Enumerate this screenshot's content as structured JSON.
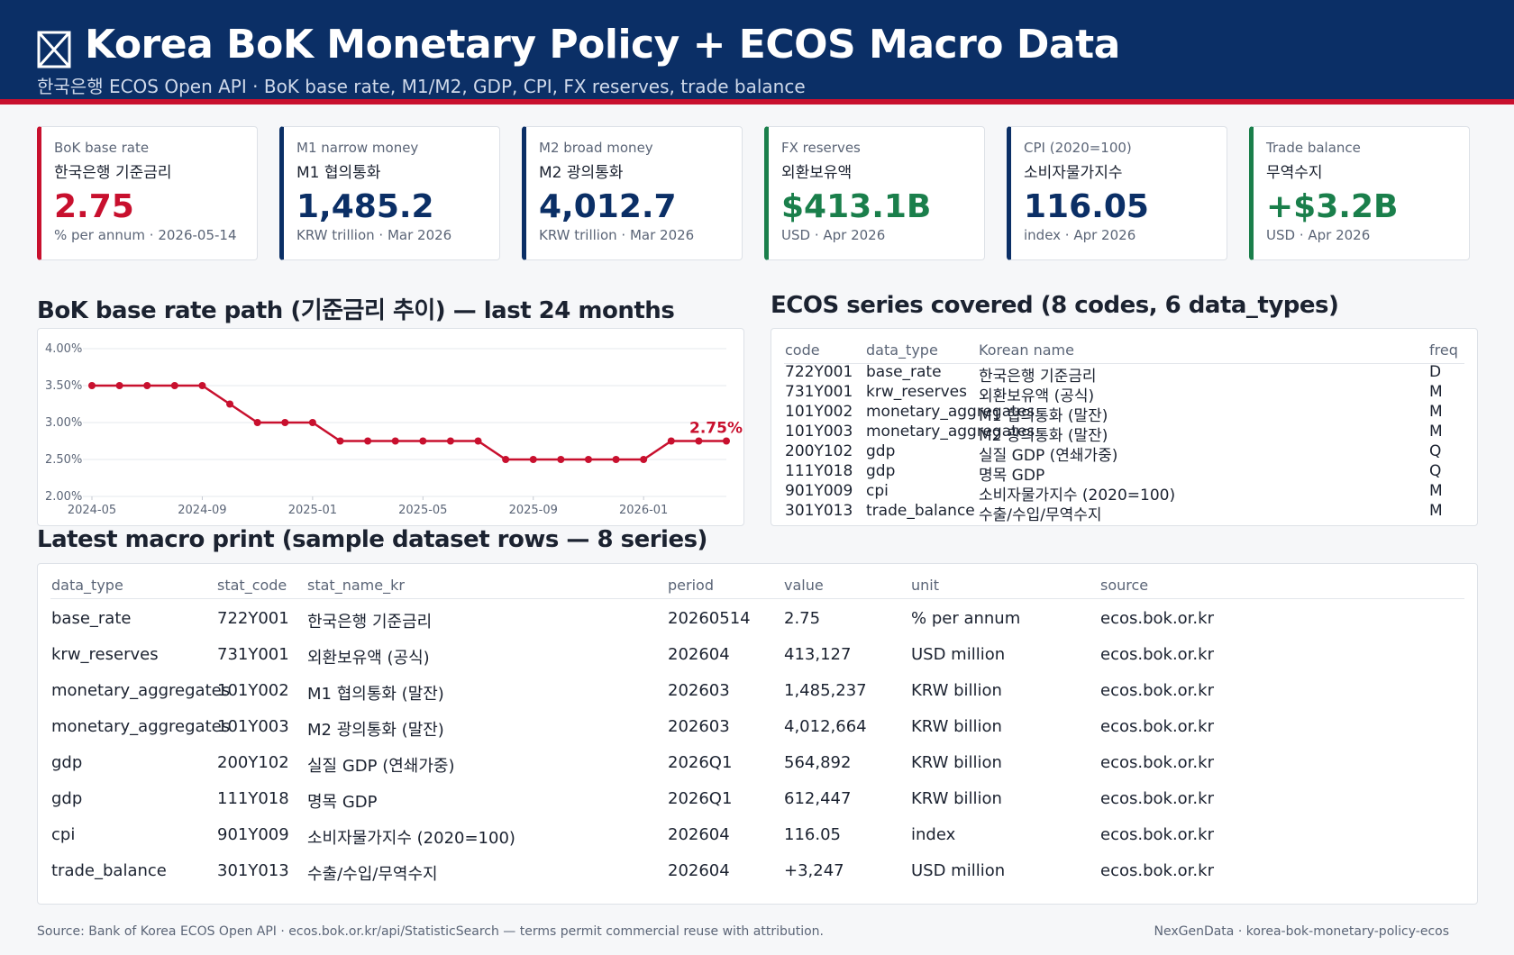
{
  "header": {
    "title": "Korea BoK Monetary Policy + ECOS Macro Data",
    "subtitle": "한국은행 ECOS Open API · BoK base rate, M1/M2, GDP, CPI, FX reserves, trade balance"
  },
  "kpis": [
    {
      "label": "BoK base rate",
      "label_kr": "한국은행 기준금리",
      "value": "2.75",
      "caption": "% per annum · 2026-05-14",
      "color": "#c8102e"
    },
    {
      "label": "M1 narrow money",
      "label_kr": "M1 협의통화",
      "value": "1,485.2",
      "caption": "KRW trillion · Mar 2026",
      "color": "#0b2f66"
    },
    {
      "label": "M2 broad money",
      "label_kr": "M2 광의통화",
      "value": "4,012.7",
      "caption": "KRW trillion · Mar 2026",
      "color": "#0b2f66"
    },
    {
      "label": "FX reserves",
      "label_kr": "외환보유액",
      "value": "$413.1B",
      "caption": "USD · Apr 2026",
      "color": "#1a7f4b"
    },
    {
      "label": "CPI (2020=100)",
      "label_kr": "소비자물가지수",
      "value": "116.05",
      "caption": "index · Apr 2026",
      "color": "#0b2f66"
    },
    {
      "label": "Trade balance",
      "label_kr": "무역수지",
      "value": "+$3.2B",
      "caption": "USD · Apr 2026",
      "color": "#1a7f4b"
    }
  ],
  "chart_data": {
    "type": "line",
    "title": "BoK base rate path (기준금리 추이) — last 24 months",
    "x": [
      "2024-05",
      "2024-06",
      "2024-07",
      "2024-08",
      "2024-09",
      "2024-10",
      "2024-11",
      "2024-12",
      "2025-01",
      "2025-02",
      "2025-03",
      "2025-04",
      "2025-05",
      "2025-06",
      "2025-07",
      "2025-08",
      "2025-09",
      "2025-10",
      "2025-11",
      "2025-12",
      "2026-01",
      "2026-02",
      "2026-03",
      "2026-04"
    ],
    "values": [
      3.5,
      3.5,
      3.5,
      3.5,
      3.5,
      3.25,
      3.0,
      3.0,
      3.0,
      2.75,
      2.75,
      2.75,
      2.75,
      2.75,
      2.75,
      2.5,
      2.5,
      2.5,
      2.5,
      2.5,
      2.5,
      2.75,
      2.75,
      2.75
    ],
    "color": "#c8102e",
    "end_label": "2.75%",
    "xticks": [
      "2024-05",
      "2024-09",
      "2025-01",
      "2025-05",
      "2025-09",
      "2026-01"
    ],
    "ylim": [
      2,
      4
    ],
    "yticks": [
      {
        "value": 2,
        "label": "2.00%"
      },
      {
        "value": 2.5,
        "label": "2.50%"
      },
      {
        "value": 3,
        "label": "3.00%"
      },
      {
        "value": 3.5,
        "label": "3.50%"
      },
      {
        "value": 4,
        "label": "4.00%"
      }
    ],
    "grid": true
  },
  "series_table": {
    "title": "ECOS series covered (8 codes, 6 data_types)",
    "columns": [
      "code",
      "data_type",
      "Korean name",
      "freq"
    ],
    "rows": [
      [
        "722Y001",
        "base_rate",
        "한국은행 기준금리",
        "D"
      ],
      [
        "731Y001",
        "krw_reserves",
        "외환보유액 (공식)",
        "M"
      ],
      [
        "101Y002",
        "monetary_aggregates",
        "M1 협의통화 (말잔)",
        "M"
      ],
      [
        "101Y003",
        "monetary_aggregates",
        "M2 광의통화 (말잔)",
        "M"
      ],
      [
        "200Y102",
        "gdp",
        "실질 GDP (연쇄가중)",
        "Q"
      ],
      [
        "111Y018",
        "gdp",
        "명목 GDP",
        "Q"
      ],
      [
        "901Y009",
        "cpi",
        "소비자물가지수 (2020=100)",
        "M"
      ],
      [
        "301Y013",
        "trade_balance",
        "수출/수입/무역수지",
        "M"
      ]
    ]
  },
  "macro_table": {
    "title": "Latest macro print (sample dataset rows — 8 series)",
    "columns": [
      "data_type",
      "stat_code",
      "stat_name_kr",
      "period",
      "value",
      "unit",
      "source"
    ],
    "rows": [
      [
        "base_rate",
        "722Y001",
        "한국은행 기준금리",
        "20260514",
        "2.75",
        "% per annum",
        "ecos.bok.or.kr"
      ],
      [
        "krw_reserves",
        "731Y001",
        "외환보유액 (공식)",
        "202604",
        "413,127",
        "USD million",
        "ecos.bok.or.kr"
      ],
      [
        "monetary_aggregates",
        "101Y002",
        "M1 협의통화 (말잔)",
        "202603",
        "1,485,237",
        "KRW billion",
        "ecos.bok.or.kr"
      ],
      [
        "monetary_aggregates",
        "101Y003",
        "M2 광의통화 (말잔)",
        "202603",
        "4,012,664",
        "KRW billion",
        "ecos.bok.or.kr"
      ],
      [
        "gdp",
        "200Y102",
        "실질 GDP (연쇄가중)",
        "2026Q1",
        "564,892",
        "KRW billion",
        "ecos.bok.or.kr"
      ],
      [
        "gdp",
        "111Y018",
        "명목 GDP",
        "2026Q1",
        "612,447",
        "KRW billion",
        "ecos.bok.or.kr"
      ],
      [
        "cpi",
        "901Y009",
        "소비자물가지수 (2020=100)",
        "202604",
        "116.05",
        "index",
        "ecos.bok.or.kr"
      ],
      [
        "trade_balance",
        "301Y013",
        "수출/수입/무역수지",
        "202604",
        "+3,247",
        "USD million",
        "ecos.bok.or.kr"
      ]
    ]
  },
  "footer": {
    "left": "Source: Bank of Korea ECOS Open API · ecos.bok.or.kr/api/StatisticSearch — terms permit commercial reuse with attribution.",
    "right": "NexGenData · korea-bok-monetary-policy-ecos"
  }
}
